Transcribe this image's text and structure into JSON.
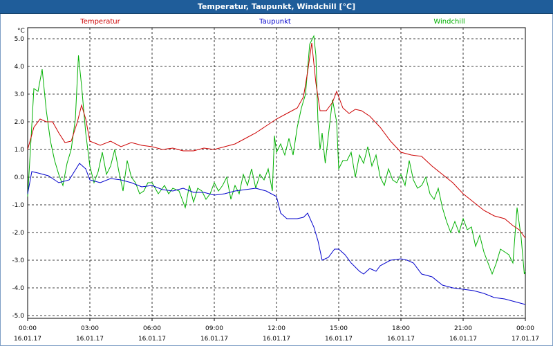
{
  "window": {
    "title": "Temperatur, Taupunkt, Windchill [°C]"
  },
  "chart_data": {
    "type": "line",
    "title": "Temperatur, Taupunkt, Windchill [°C]",
    "ylabel": "°C",
    "xlabel": "",
    "ylim": [
      -5.1,
      5.4
    ],
    "xlim": [
      0,
      24
    ],
    "grid": true,
    "y_ticks": [
      "5.0",
      "4.0",
      "3.0",
      "2.0",
      "1.0",
      "0.0",
      "-1.0",
      "-2.0",
      "-3.0",
      "-4.0",
      "-5.0"
    ],
    "y_tick_values": [
      5,
      4,
      3,
      2,
      1,
      0,
      -1,
      -2,
      -3,
      -4,
      -5
    ],
    "x_tick_hours": [
      0,
      3,
      6,
      9,
      12,
      15,
      18,
      21,
      24
    ],
    "x_tick_times": [
      "00:00",
      "03:00",
      "06:00",
      "09:00",
      "12:00",
      "15:00",
      "18:00",
      "21:00",
      "00:00"
    ],
    "x_tick_dates": [
      "16.01.17",
      "16.01.17",
      "16.01.17",
      "16.01.17",
      "16.01.17",
      "16.01.17",
      "16.01.17",
      "16.01.17",
      "17.01.17"
    ],
    "series": [
      {
        "name": "Temperatur",
        "color": "#cc0000",
        "points": [
          [
            0.0,
            1.0
          ],
          [
            0.3,
            1.8
          ],
          [
            0.6,
            2.1
          ],
          [
            0.9,
            2.0
          ],
          [
            1.2,
            2.0
          ],
          [
            1.5,
            1.6
          ],
          [
            1.8,
            1.25
          ],
          [
            2.1,
            1.3
          ],
          [
            2.4,
            2.0
          ],
          [
            2.6,
            2.6
          ],
          [
            2.8,
            2.1
          ],
          [
            3.0,
            1.3
          ],
          [
            3.5,
            1.15
          ],
          [
            4.0,
            1.3
          ],
          [
            4.5,
            1.1
          ],
          [
            5.0,
            1.25
          ],
          [
            5.5,
            1.15
          ],
          [
            6.0,
            1.1
          ],
          [
            6.5,
            1.0
          ],
          [
            7.0,
            1.05
          ],
          [
            7.5,
            0.95
          ],
          [
            8.0,
            0.95
          ],
          [
            8.5,
            1.05
          ],
          [
            9.0,
            1.0
          ],
          [
            9.5,
            1.1
          ],
          [
            10.0,
            1.2
          ],
          [
            10.5,
            1.4
          ],
          [
            11.0,
            1.6
          ],
          [
            11.5,
            1.85
          ],
          [
            12.0,
            2.1
          ],
          [
            12.5,
            2.3
          ],
          [
            13.0,
            2.5
          ],
          [
            13.3,
            2.9
          ],
          [
            13.5,
            3.8
          ],
          [
            13.7,
            4.85
          ],
          [
            13.9,
            3.4
          ],
          [
            14.1,
            2.4
          ],
          [
            14.4,
            2.4
          ],
          [
            14.7,
            2.7
          ],
          [
            14.9,
            3.1
          ],
          [
            15.2,
            2.5
          ],
          [
            15.5,
            2.3
          ],
          [
            15.8,
            2.45
          ],
          [
            16.1,
            2.4
          ],
          [
            16.5,
            2.2
          ],
          [
            17.0,
            1.8
          ],
          [
            17.5,
            1.3
          ],
          [
            18.0,
            0.9
          ],
          [
            18.5,
            0.8
          ],
          [
            19.0,
            0.75
          ],
          [
            19.5,
            0.4
          ],
          [
            20.0,
            0.1
          ],
          [
            20.5,
            -0.2
          ],
          [
            21.0,
            -0.6
          ],
          [
            21.5,
            -0.9
          ],
          [
            22.0,
            -1.2
          ],
          [
            22.5,
            -1.4
          ],
          [
            23.0,
            -1.5
          ],
          [
            23.4,
            -1.75
          ],
          [
            23.7,
            -1.9
          ],
          [
            24.0,
            -2.2
          ]
        ]
      },
      {
        "name": "Taupunkt",
        "color": "#0000cc",
        "points": [
          [
            0.0,
            -0.6
          ],
          [
            0.2,
            0.2
          ],
          [
            0.5,
            0.15
          ],
          [
            1.0,
            0.05
          ],
          [
            1.5,
            -0.2
          ],
          [
            2.0,
            -0.1
          ],
          [
            2.5,
            0.5
          ],
          [
            2.8,
            0.3
          ],
          [
            3.0,
            -0.1
          ],
          [
            3.5,
            -0.2
          ],
          [
            4.0,
            -0.05
          ],
          [
            4.5,
            -0.1
          ],
          [
            5.0,
            -0.2
          ],
          [
            5.5,
            -0.35
          ],
          [
            6.0,
            -0.3
          ],
          [
            6.5,
            -0.45
          ],
          [
            7.0,
            -0.5
          ],
          [
            7.5,
            -0.4
          ],
          [
            8.0,
            -0.55
          ],
          [
            8.5,
            -0.55
          ],
          [
            9.0,
            -0.65
          ],
          [
            9.5,
            -0.6
          ],
          [
            10.0,
            -0.5
          ],
          [
            10.5,
            -0.45
          ],
          [
            11.0,
            -0.4
          ],
          [
            11.5,
            -0.5
          ],
          [
            12.0,
            -0.7
          ],
          [
            12.2,
            -1.3
          ],
          [
            12.5,
            -1.5
          ],
          [
            13.0,
            -1.5
          ],
          [
            13.3,
            -1.45
          ],
          [
            13.5,
            -1.3
          ],
          [
            13.8,
            -1.8
          ],
          [
            14.0,
            -2.3
          ],
          [
            14.2,
            -3.0
          ],
          [
            14.5,
            -2.9
          ],
          [
            14.8,
            -2.6
          ],
          [
            15.0,
            -2.6
          ],
          [
            15.3,
            -2.8
          ],
          [
            15.6,
            -3.1
          ],
          [
            16.0,
            -3.4
          ],
          [
            16.2,
            -3.5
          ],
          [
            16.5,
            -3.3
          ],
          [
            16.8,
            -3.4
          ],
          [
            17.0,
            -3.2
          ],
          [
            17.5,
            -3.0
          ],
          [
            18.0,
            -2.95
          ],
          [
            18.3,
            -3.0
          ],
          [
            18.6,
            -3.1
          ],
          [
            19.0,
            -3.5
          ],
          [
            19.5,
            -3.6
          ],
          [
            20.0,
            -3.9
          ],
          [
            20.5,
            -4.0
          ],
          [
            21.0,
            -4.05
          ],
          [
            21.5,
            -4.1
          ],
          [
            22.0,
            -4.2
          ],
          [
            22.5,
            -4.35
          ],
          [
            23.0,
            -4.4
          ],
          [
            23.5,
            -4.5
          ],
          [
            24.0,
            -4.6
          ]
        ]
      },
      {
        "name": "Windchill",
        "color": "#00b000",
        "points": [
          [
            0.0,
            -0.7
          ],
          [
            0.15,
            1.2
          ],
          [
            0.3,
            3.2
          ],
          [
            0.5,
            3.1
          ],
          [
            0.7,
            3.9
          ],
          [
            0.9,
            2.4
          ],
          [
            1.1,
            1.3
          ],
          [
            1.3,
            0.6
          ],
          [
            1.5,
            0.1
          ],
          [
            1.7,
            -0.3
          ],
          [
            1.9,
            0.5
          ],
          [
            2.1,
            1.0
          ],
          [
            2.3,
            2.1
          ],
          [
            2.45,
            4.4
          ],
          [
            2.6,
            3.3
          ],
          [
            2.8,
            1.6
          ],
          [
            3.0,
            0.4
          ],
          [
            3.2,
            -0.2
          ],
          [
            3.4,
            0.2
          ],
          [
            3.6,
            0.9
          ],
          [
            3.8,
            0.1
          ],
          [
            4.0,
            0.4
          ],
          [
            4.2,
            1.0
          ],
          [
            4.4,
            0.2
          ],
          [
            4.6,
            -0.5
          ],
          [
            4.8,
            0.6
          ],
          [
            5.0,
            0.0
          ],
          [
            5.2,
            -0.2
          ],
          [
            5.4,
            -0.6
          ],
          [
            5.6,
            -0.5
          ],
          [
            5.8,
            -0.2
          ],
          [
            6.0,
            -0.2
          ],
          [
            6.3,
            -0.6
          ],
          [
            6.6,
            -0.3
          ],
          [
            6.8,
            -0.6
          ],
          [
            7.0,
            -0.4
          ],
          [
            7.3,
            -0.5
          ],
          [
            7.6,
            -1.1
          ],
          [
            7.8,
            -0.3
          ],
          [
            8.0,
            -0.9
          ],
          [
            8.2,
            -0.4
          ],
          [
            8.4,
            -0.5
          ],
          [
            8.6,
            -0.8
          ],
          [
            8.8,
            -0.6
          ],
          [
            9.0,
            -0.2
          ],
          [
            9.2,
            -0.5
          ],
          [
            9.4,
            -0.3
          ],
          [
            9.6,
            0.0
          ],
          [
            9.8,
            -0.8
          ],
          [
            10.0,
            -0.3
          ],
          [
            10.2,
            -0.6
          ],
          [
            10.4,
            0.1
          ],
          [
            10.6,
            -0.3
          ],
          [
            10.8,
            0.3
          ],
          [
            11.0,
            -0.4
          ],
          [
            11.2,
            0.1
          ],
          [
            11.4,
            -0.1
          ],
          [
            11.6,
            0.3
          ],
          [
            11.8,
            -0.5
          ],
          [
            11.9,
            1.5
          ],
          [
            12.0,
            0.9
          ],
          [
            12.2,
            1.2
          ],
          [
            12.4,
            0.8
          ],
          [
            12.6,
            1.4
          ],
          [
            12.8,
            0.8
          ],
          [
            13.0,
            1.8
          ],
          [
            13.2,
            2.5
          ],
          [
            13.4,
            3.0
          ],
          [
            13.6,
            4.8
          ],
          [
            13.8,
            5.1
          ],
          [
            13.9,
            4.4
          ],
          [
            14.0,
            2.0
          ],
          [
            14.1,
            1.0
          ],
          [
            14.2,
            1.6
          ],
          [
            14.35,
            0.5
          ],
          [
            14.5,
            1.5
          ],
          [
            14.7,
            2.8
          ],
          [
            14.9,
            2.0
          ],
          [
            15.0,
            0.3
          ],
          [
            15.2,
            0.6
          ],
          [
            15.4,
            0.6
          ],
          [
            15.6,
            0.9
          ],
          [
            15.8,
            0.0
          ],
          [
            16.0,
            0.8
          ],
          [
            16.2,
            0.5
          ],
          [
            16.4,
            1.1
          ],
          [
            16.6,
            0.4
          ],
          [
            16.8,
            0.8
          ],
          [
            17.0,
            0.0
          ],
          [
            17.2,
            -0.3
          ],
          [
            17.4,
            0.3
          ],
          [
            17.6,
            -0.1
          ],
          [
            17.8,
            -0.2
          ],
          [
            18.0,
            0.1
          ],
          [
            18.2,
            -0.3
          ],
          [
            18.4,
            0.6
          ],
          [
            18.6,
            -0.1
          ],
          [
            18.8,
            -0.4
          ],
          [
            19.0,
            -0.3
          ],
          [
            19.2,
            0.0
          ],
          [
            19.4,
            -0.6
          ],
          [
            19.6,
            -0.8
          ],
          [
            19.8,
            -0.4
          ],
          [
            20.0,
            -1.1
          ],
          [
            20.2,
            -1.6
          ],
          [
            20.4,
            -2.0
          ],
          [
            20.6,
            -1.6
          ],
          [
            20.8,
            -2.0
          ],
          [
            21.0,
            -1.5
          ],
          [
            21.2,
            -1.9
          ],
          [
            21.4,
            -1.8
          ],
          [
            21.6,
            -2.5
          ],
          [
            21.8,
            -2.1
          ],
          [
            22.0,
            -2.7
          ],
          [
            22.2,
            -3.1
          ],
          [
            22.4,
            -3.5
          ],
          [
            22.6,
            -3.1
          ],
          [
            22.8,
            -2.6
          ],
          [
            23.0,
            -2.7
          ],
          [
            23.2,
            -2.8
          ],
          [
            23.4,
            -3.1
          ],
          [
            23.6,
            -1.1
          ],
          [
            23.8,
            -2.2
          ],
          [
            23.95,
            -3.5
          ],
          [
            24.0,
            -3.4
          ]
        ]
      }
    ]
  }
}
